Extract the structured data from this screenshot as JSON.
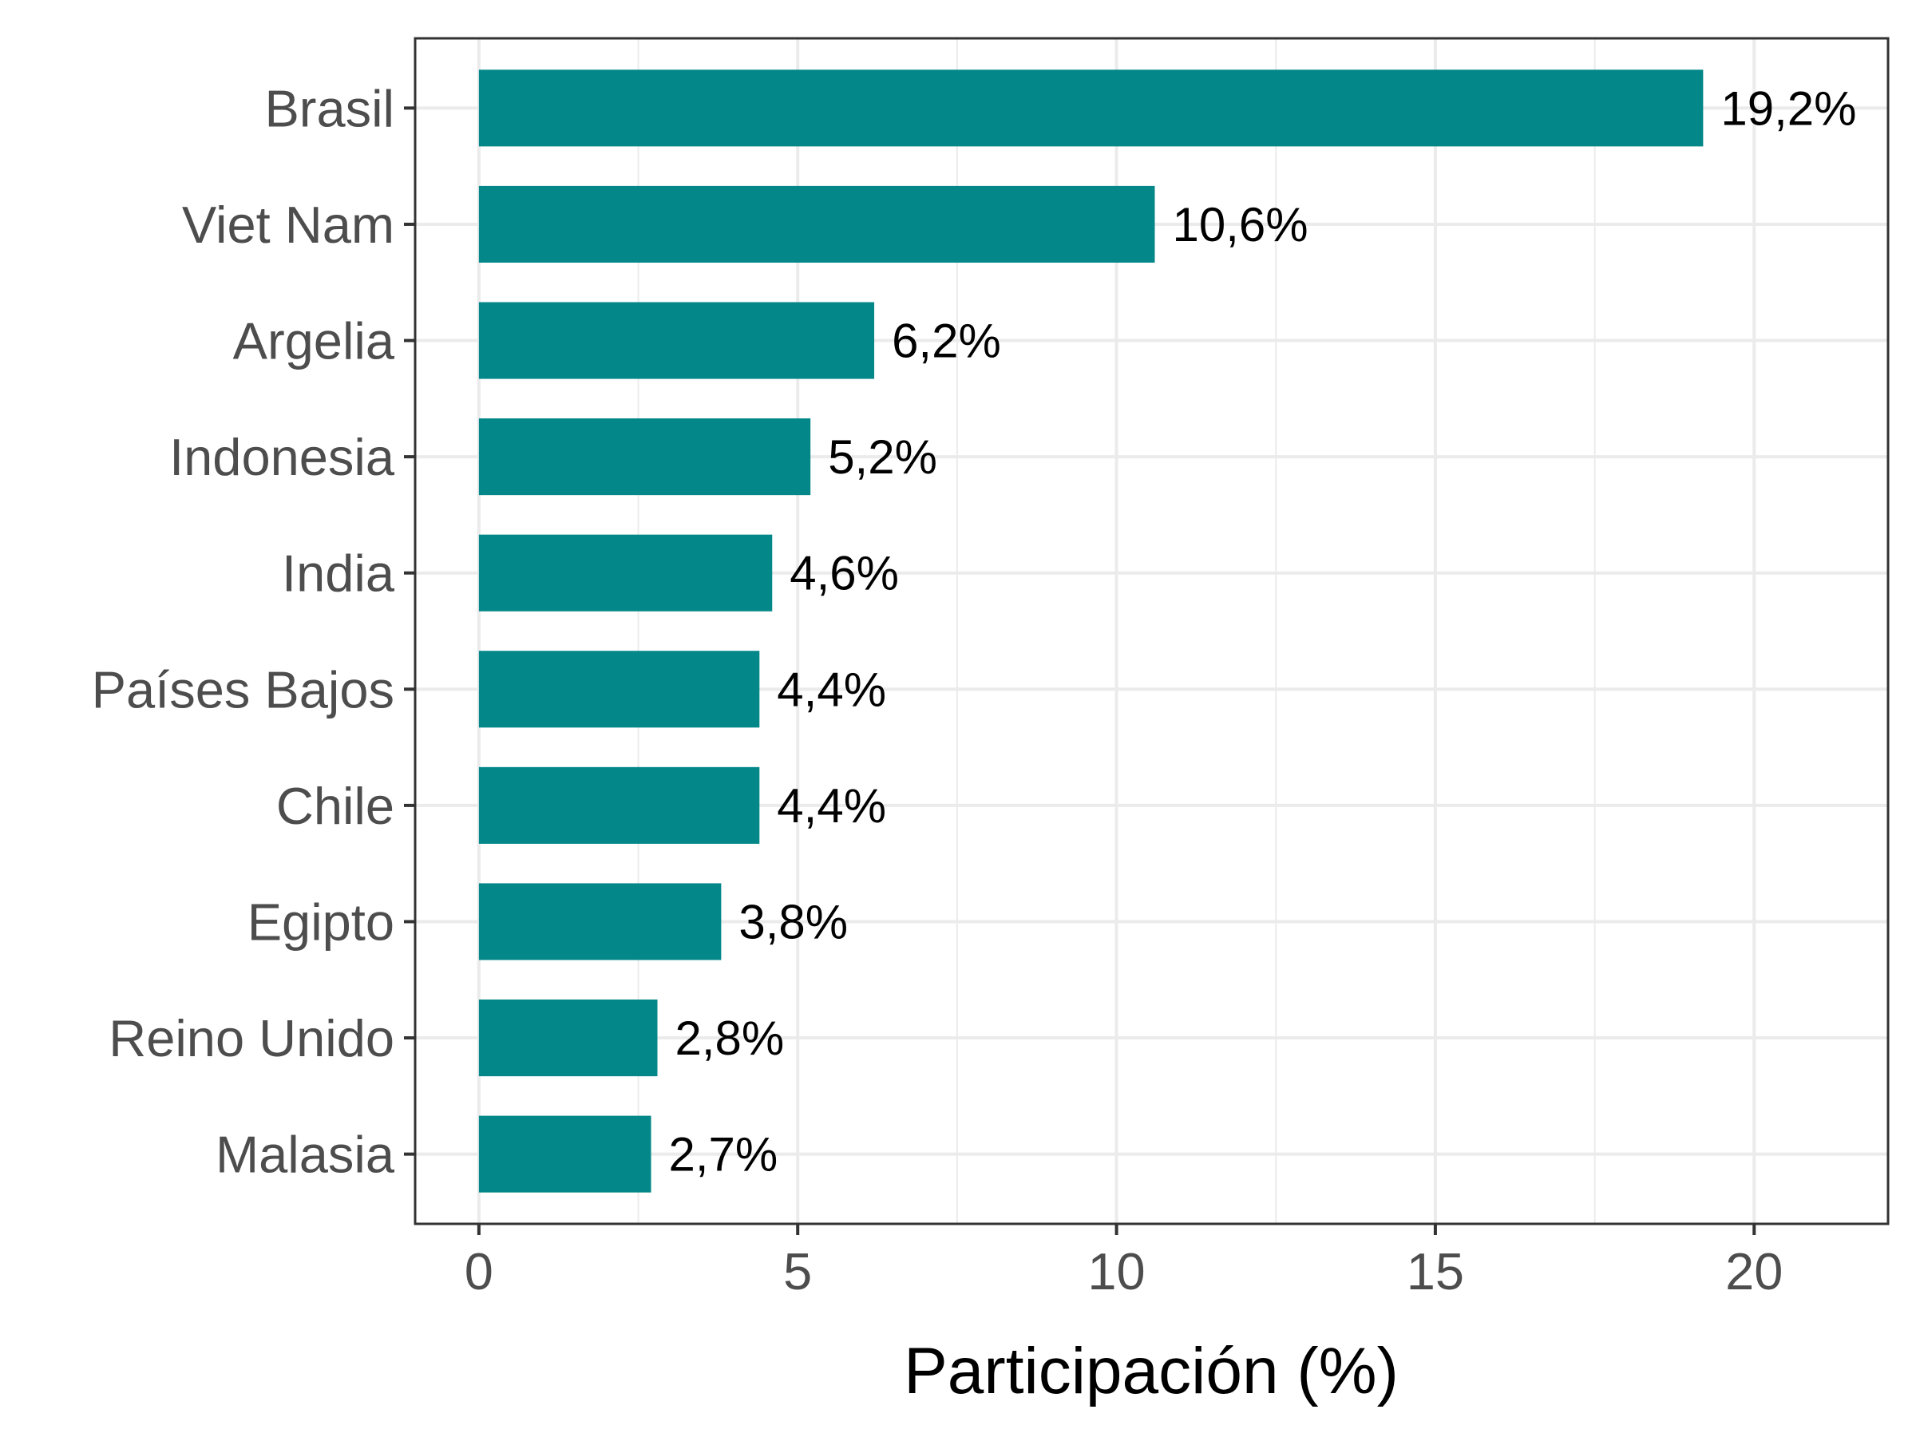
{
  "chart_data": {
    "type": "bar",
    "orientation": "horizontal",
    "categories": [
      "Brasil",
      "Viet Nam",
      "Argelia",
      "Indonesia",
      "India",
      "Países Bajos",
      "Chile",
      "Egipto",
      "Reino Unido",
      "Malasia"
    ],
    "values": [
      19.2,
      10.6,
      6.2,
      5.2,
      4.6,
      4.4,
      4.4,
      3.8,
      2.8,
      2.7
    ],
    "data_labels": [
      "19,2%",
      "10,6%",
      "6,2%",
      "5,2%",
      "4,6%",
      "4,4%",
      "4,4%",
      "3,8%",
      "2,8%",
      "2,7%"
    ],
    "title": "",
    "xlabel": "Participación (%)",
    "ylabel": "",
    "xlim": [
      -1,
      22.1
    ],
    "x_ticks": [
      0,
      5,
      10,
      15,
      20
    ],
    "x_tick_labels": [
      "0",
      "5",
      "10",
      "15",
      "20"
    ],
    "grid": true,
    "legend": "none",
    "colors": {
      "bar": "#038789",
      "grid": "#ebebeb",
      "panel_border": "#333333",
      "tick_label": "#4d4d4d",
      "data_label": "#000000"
    }
  }
}
